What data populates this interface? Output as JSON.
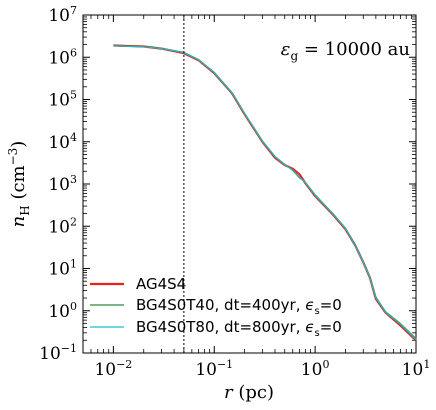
{
  "chart_data": {
    "type": "line",
    "xscale": "log",
    "yscale": "log",
    "xlim": [
      0.005,
      10
    ],
    "ylim": [
      0.1,
      10000000
    ],
    "xlabel": "r (pc)",
    "ylabel": "n_H (cm^-3)",
    "grid": false,
    "legend_position": "lower-left",
    "annotation": "ε_g = 10000 au",
    "vline_x": 0.05,
    "x_ticks": [
      {
        "value": 0.01,
        "base": "10",
        "exp": "−2"
      },
      {
        "value": 0.1,
        "base": "10",
        "exp": "−1"
      },
      {
        "value": 1,
        "base": "10",
        "exp": "0"
      },
      {
        "value": 10,
        "base": "10",
        "exp": "1"
      }
    ],
    "y_ticks": [
      {
        "value": 0.1,
        "base": "10",
        "exp": "−1"
      },
      {
        "value": 1,
        "base": "10",
        "exp": "0"
      },
      {
        "value": 10,
        "base": "10",
        "exp": "1"
      },
      {
        "value": 100,
        "base": "10",
        "exp": "2"
      },
      {
        "value": 1000,
        "base": "10",
        "exp": "3"
      },
      {
        "value": 10000,
        "base": "10",
        "exp": "4"
      },
      {
        "value": 100000,
        "base": "10",
        "exp": "5"
      },
      {
        "value": 1000000,
        "base": "10",
        "exp": "6"
      },
      {
        "value": 10000000,
        "base": "10",
        "exp": "7"
      }
    ],
    "series": [
      {
        "name": "AG4S4",
        "color": "#e8221b",
        "width": 2.2,
        "x": [
          0.01,
          0.02,
          0.03,
          0.05,
          0.07,
          0.1,
          0.15,
          0.2,
          0.3,
          0.4,
          0.5,
          0.6,
          0.7,
          0.8,
          1.0,
          1.2,
          1.5,
          2.0,
          2.5,
          3.0,
          3.5,
          4.0,
          5.0,
          7.0,
          10.0
        ],
        "y": [
          1900000,
          1800000,
          1600000,
          1250000,
          850000,
          420000,
          140000,
          45000,
          10000,
          4200,
          2800,
          2300,
          1700,
          1050,
          520,
          330,
          190,
          85,
          35,
          14,
          6,
          1.9,
          0.9,
          0.45,
          0.2
        ]
      },
      {
        "name": "BG4S0T40, dt=400yr, ϵ_s=0",
        "color": "#2e8b3a",
        "width": 1.2,
        "x": [
          0.01,
          0.02,
          0.03,
          0.05,
          0.07,
          0.1,
          0.15,
          0.2,
          0.3,
          0.4,
          0.5,
          0.6,
          0.7,
          0.8,
          1.0,
          1.2,
          1.5,
          2.0,
          2.5,
          3.0,
          3.5,
          4.0,
          5.0,
          7.0,
          10.0
        ],
        "y": [
          1880000,
          1780000,
          1620000,
          1300000,
          880000,
          440000,
          145000,
          47000,
          10500,
          4500,
          2900,
          2100,
          1400,
          1100,
          560,
          350,
          200,
          90,
          36,
          14,
          6,
          2.1,
          0.95,
          0.5,
          0.22
        ]
      },
      {
        "name": "BG4S0T80, dt=800yr, ϵ_s=0",
        "color": "#17becf",
        "width": 1.2,
        "x": [
          0.01,
          0.02,
          0.03,
          0.05,
          0.07,
          0.1,
          0.15,
          0.2,
          0.3,
          0.4,
          0.5,
          0.6,
          0.7,
          0.8,
          1.0,
          1.2,
          1.5,
          2.0,
          2.5,
          3.0,
          3.5,
          4.0,
          5.0,
          7.0,
          10.0
        ],
        "y": [
          1870000,
          1770000,
          1610000,
          1280000,
          870000,
          430000,
          142000,
          46000,
          10200,
          4400,
          2850,
          2150,
          1450,
          1080,
          540,
          340,
          195,
          88,
          35,
          14,
          6,
          2.0,
          0.92,
          0.48,
          0.21
        ]
      }
    ]
  }
}
